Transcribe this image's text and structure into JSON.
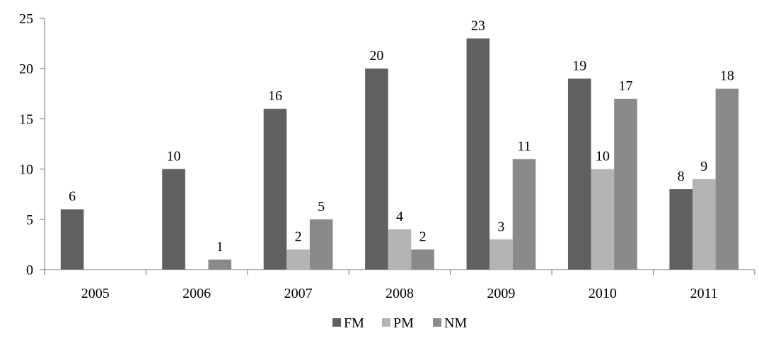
{
  "chart_data": {
    "type": "bar",
    "title": "",
    "xlabel": "",
    "ylabel": "",
    "categories": [
      "2005",
      "2006",
      "2007",
      "2008",
      "2009",
      "2010",
      "2011"
    ],
    "series": [
      {
        "name": "FM",
        "color": "#606060",
        "values": [
          6,
          10,
          16,
          20,
          23,
          19,
          8
        ]
      },
      {
        "name": "PM",
        "color": "#b4b4b4",
        "values": [
          null,
          null,
          2,
          4,
          3,
          10,
          9
        ]
      },
      {
        "name": "NM",
        "color": "#8a8a8a",
        "values": [
          null,
          1,
          5,
          2,
          11,
          17,
          18
        ]
      }
    ],
    "ylim": [
      0,
      25
    ],
    "yticks": [
      0,
      5,
      10,
      15,
      20,
      25
    ],
    "grid": false,
    "legend": "bottom-center",
    "data_labels": true
  }
}
